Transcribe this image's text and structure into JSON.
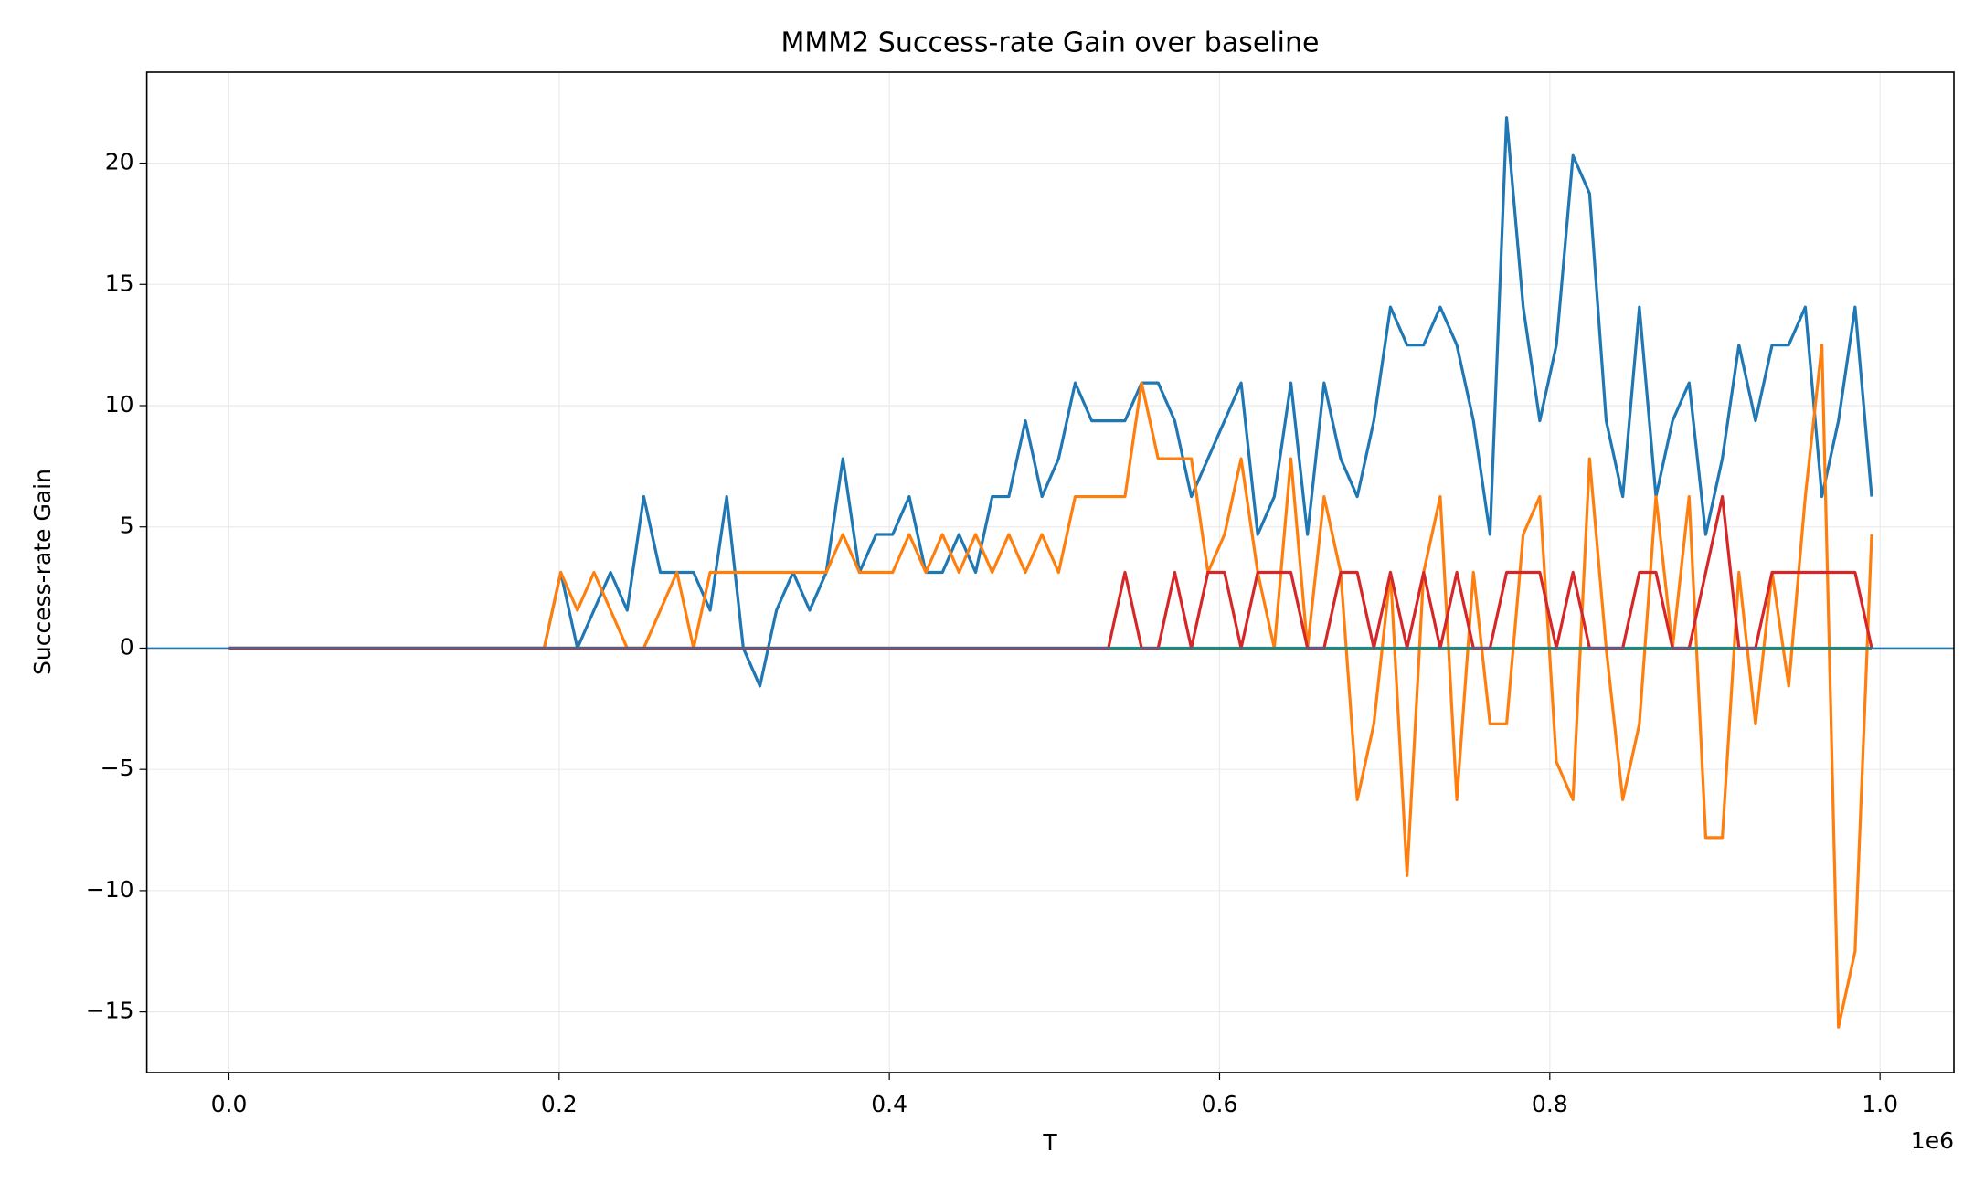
{
  "chart_data": {
    "type": "line",
    "title": "MMM2 Success-rate Gain over baseline",
    "x_label": "T",
    "y_label": "Success-rate Gain",
    "x_offset_label": "1e6",
    "xlim": [
      -49750,
      1044750
    ],
    "ylim": [
      -17.5,
      23.75
    ],
    "xticks": [
      {
        "value": 0,
        "label": "0.0"
      },
      {
        "value": 200000,
        "label": "0.2"
      },
      {
        "value": 400000,
        "label": "0.4"
      },
      {
        "value": 600000,
        "label": "0.6"
      },
      {
        "value": 800000,
        "label": "0.8"
      },
      {
        "value": 1000000,
        "label": "1.0"
      }
    ],
    "yticks": [
      {
        "value": -15,
        "label": "−15"
      },
      {
        "value": -10,
        "label": "−10"
      },
      {
        "value": -5,
        "label": "−5"
      },
      0,
      5,
      10,
      15,
      20
    ],
    "grid": true,
    "hline": 0,
    "hline_color": "#1f77b4",
    "x": [
      0,
      10050,
      20100,
      30150,
      40200,
      50250,
      60300,
      70350,
      80400,
      90450,
      100500,
      110550,
      120600,
      130650,
      140700,
      150750,
      160800,
      170850,
      180900,
      190950,
      201000,
      211050,
      221100,
      231150,
      241200,
      251250,
      261300,
      271350,
      281400,
      291450,
      301500,
      311550,
      321600,
      331650,
      341700,
      351750,
      361800,
      371850,
      381900,
      391950,
      402000,
      412050,
      422100,
      432150,
      442200,
      452250,
      462300,
      472350,
      482400,
      492450,
      502500,
      512550,
      522600,
      532650,
      542700,
      552750,
      562800,
      572850,
      582900,
      592950,
      603000,
      613050,
      623100,
      633150,
      643200,
      653250,
      663300,
      673350,
      683400,
      693450,
      703500,
      713550,
      723600,
      733650,
      743700,
      753750,
      763800,
      773850,
      783900,
      793950,
      804000,
      814050,
      824100,
      834150,
      844200,
      854250,
      864300,
      874350,
      884400,
      894450,
      904500,
      914550,
      924600,
      934650,
      944700,
      954750,
      964800,
      974850,
      984900,
      994950
    ],
    "series": [
      {
        "color": "#1f77b4",
        "values": [
          0,
          0,
          0,
          0,
          0,
          0,
          0,
          0,
          0,
          0,
          0,
          0,
          0,
          0,
          0,
          0,
          0,
          0,
          0,
          0,
          3.125,
          0,
          1.5625,
          3.125,
          1.5625,
          6.25,
          3.125,
          3.125,
          3.125,
          1.5625,
          6.25,
          0,
          -1.5625,
          1.5625,
          3.125,
          1.5625,
          3.125,
          7.8125,
          3.125,
          4.6875,
          4.6875,
          6.25,
          3.125,
          3.125,
          4.6875,
          3.125,
          6.25,
          6.25,
          9.375,
          6.25,
          7.8125,
          10.9375,
          9.375,
          9.375,
          9.375,
          10.9375,
          10.9375,
          9.375,
          6.25,
          7.8125,
          9.375,
          10.9375,
          4.6875,
          6.25,
          10.9375,
          4.6875,
          10.9375,
          7.8125,
          6.25,
          9.375,
          14.0625,
          12.5,
          12.5,
          14.0625,
          12.5,
          9.375,
          4.6875,
          21.875,
          14.0625,
          9.375,
          12.5,
          20.3125,
          18.75,
          9.375,
          6.25,
          14.0625,
          6.25,
          9.375,
          10.9375,
          4.6875,
          7.8125,
          12.5,
          9.375,
          12.5,
          12.5,
          14.0625,
          6.25,
          9.375,
          14.0625,
          6.25
        ]
      },
      {
        "color": "#ff7f0e",
        "values": [
          0,
          0,
          0,
          0,
          0,
          0,
          0,
          0,
          0,
          0,
          0,
          0,
          0,
          0,
          0,
          0,
          0,
          0,
          0,
          0,
          3.125,
          1.5625,
          3.125,
          1.5625,
          0,
          0,
          1.5625,
          3.125,
          0,
          3.125,
          3.125,
          3.125,
          3.125,
          3.125,
          3.125,
          3.125,
          3.125,
          4.6875,
          3.125,
          3.125,
          3.125,
          4.6875,
          3.125,
          4.6875,
          3.125,
          4.6875,
          3.125,
          4.6875,
          3.125,
          4.6875,
          3.125,
          6.25,
          6.25,
          6.25,
          6.25,
          10.9375,
          7.8125,
          7.8125,
          7.8125,
          3.125,
          4.6875,
          7.8125,
          3.125,
          0,
          7.8125,
          0,
          6.25,
          3.125,
          -6.25,
          -3.125,
          3.125,
          -9.375,
          3.125,
          6.25,
          -6.25,
          3.125,
          -3.125,
          -3.125,
          4.6875,
          6.25,
          -4.6875,
          -6.25,
          7.8125,
          0,
          -6.25,
          -3.125,
          6.25,
          0,
          6.25,
          -7.8125,
          -7.8125,
          3.125,
          -3.125,
          3.125,
          -1.5625,
          6.25,
          12.5,
          -15.625,
          -12.5,
          4.6875
        ]
      },
      {
        "color": "#2ca02c",
        "values": [
          0,
          0,
          0,
          0,
          0,
          0,
          0,
          0,
          0,
          0,
          0,
          0,
          0,
          0,
          0,
          0,
          0,
          0,
          0,
          0,
          0,
          0,
          0,
          0,
          0,
          0,
          0,
          0,
          0,
          0,
          0,
          0,
          0,
          0,
          0,
          0,
          0,
          0,
          0,
          0,
          0,
          0,
          0,
          0,
          0,
          0,
          0,
          0,
          0,
          0,
          0,
          0,
          0,
          0,
          0,
          0,
          0,
          0,
          0,
          0,
          0,
          0,
          0,
          0,
          0,
          0,
          0,
          0,
          0,
          0,
          0,
          0,
          0,
          0,
          0,
          0,
          0,
          0,
          0,
          0,
          0,
          0,
          0,
          0,
          0,
          0,
          0,
          0,
          0,
          0,
          0,
          0,
          0,
          0,
          0,
          0,
          0,
          0,
          0,
          0
        ]
      },
      {
        "color": "#d62728",
        "values": [
          0,
          0,
          0,
          0,
          0,
          0,
          0,
          0,
          0,
          0,
          0,
          0,
          0,
          0,
          0,
          0,
          0,
          0,
          0,
          0,
          0,
          0,
          0,
          0,
          0,
          0,
          0,
          0,
          0,
          0,
          0,
          0,
          0,
          0,
          0,
          0,
          0,
          0,
          0,
          0,
          0,
          0,
          0,
          0,
          0,
          0,
          0,
          0,
          0,
          0,
          0,
          0,
          0,
          0,
          3.125,
          0,
          0,
          3.125,
          0,
          3.125,
          3.125,
          0,
          3.125,
          3.125,
          3.125,
          0,
          0,
          3.125,
          3.125,
          0,
          3.125,
          0,
          3.125,
          0,
          3.125,
          0,
          0,
          3.125,
          3.125,
          3.125,
          0,
          3.125,
          0,
          0,
          0,
          3.125,
          3.125,
          0,
          0,
          3.125,
          6.25,
          0,
          0,
          3.125,
          3.125,
          3.125,
          3.125,
          3.125,
          3.125,
          0
        ]
      }
    ]
  }
}
